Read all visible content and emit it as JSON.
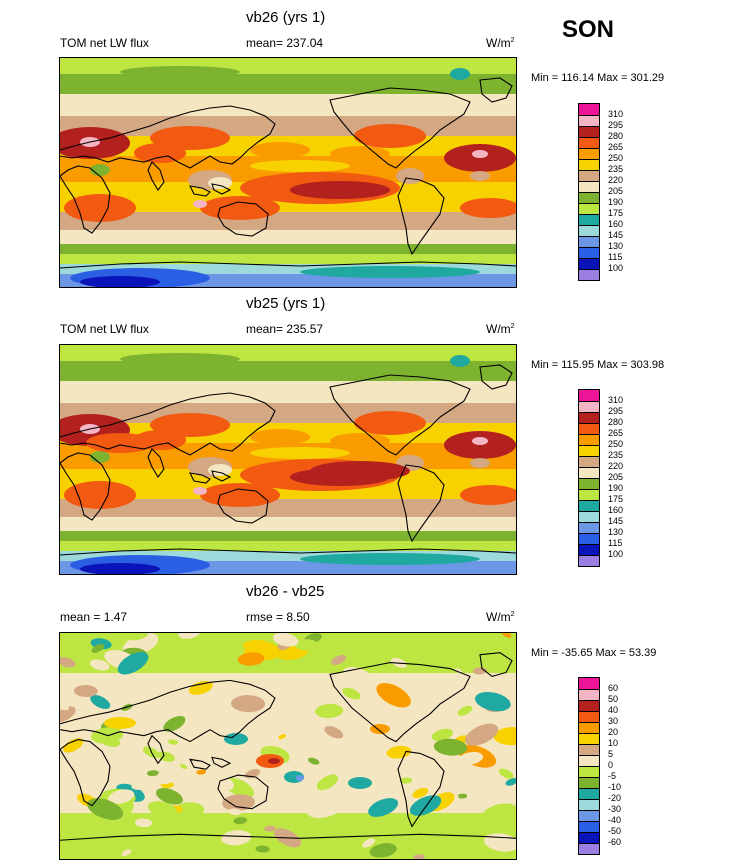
{
  "season": "SON",
  "panels": [
    {
      "title": "vb26 (yrs 1)",
      "left_label": "TOM net LW flux",
      "center_label": "mean= 237.04",
      "units": "W/m",
      "units_sup": "2",
      "minmax": "Min = 116.14 Max = 301.29",
      "levels": [
        "310",
        "295",
        "280",
        "265",
        "250",
        "235",
        "220",
        "205",
        "190",
        "175",
        "160",
        "145",
        "130",
        "115",
        "100"
      ],
      "colors": [
        "#ee1497",
        "#f4b6c5",
        "#b3211f",
        "#f25a12",
        "#fa9c00",
        "#f8d100",
        "#d5a884",
        "#f5e6c2",
        "#7eb32f",
        "#bde642",
        "#1fa9a1",
        "#9bd9da",
        "#6b97e4",
        "#2a5ee3",
        "#0a14b8",
        "#9a7fe0"
      ],
      "map_type": "abs1"
    },
    {
      "title": "vb25 (yrs 1)",
      "left_label": "TOM net LW flux",
      "center_label": "mean= 235.57",
      "units": "W/m",
      "units_sup": "2",
      "minmax": "Min = 115.95 Max = 303.98",
      "levels": [
        "310",
        "295",
        "280",
        "265",
        "250",
        "235",
        "220",
        "205",
        "190",
        "175",
        "160",
        "145",
        "130",
        "115",
        "100"
      ],
      "colors": [
        "#ee1497",
        "#f4b6c5",
        "#b3211f",
        "#f25a12",
        "#fa9c00",
        "#f8d100",
        "#d5a884",
        "#f5e6c2",
        "#7eb32f",
        "#bde642",
        "#1fa9a1",
        "#9bd9da",
        "#6b97e4",
        "#2a5ee3",
        "#0a14b8",
        "#9a7fe0"
      ],
      "map_type": "abs2"
    },
    {
      "title": "vb26 - vb25",
      "left_label": "mean =   1.47",
      "center_label": "rmse =   8.50",
      "units": "W/m",
      "units_sup": "2",
      "minmax": "Min = -35.65 Max =  53.39",
      "levels": [
        "60",
        "50",
        "40",
        "30",
        "20",
        "10",
        "5",
        "0",
        "-5",
        "-10",
        "-20",
        "-30",
        "-40",
        "-50",
        "-60"
      ],
      "colors": [
        "#ee1497",
        "#f4b6c5",
        "#b3211f",
        "#f25a12",
        "#fa9c00",
        "#f8d100",
        "#d5a884",
        "#f5e6c2",
        "#bde642",
        "#7eb32f",
        "#1fa9a1",
        "#9bd9da",
        "#6b97e4",
        "#2a5ee3",
        "#0a14b8",
        "#9a7fe0"
      ],
      "map_type": "diff"
    }
  ]
}
